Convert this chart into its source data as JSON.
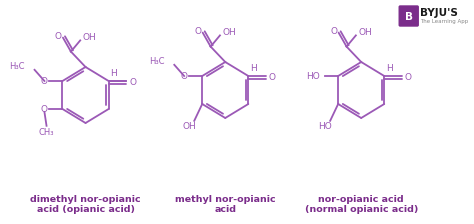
{
  "background_color": "#ffffff",
  "molecule_color": "#9b59b6",
  "label_color": "#7b2d8b",
  "fig_width": 4.74,
  "fig_height": 2.24,
  "dpi": 100,
  "labels": [
    "dimethyl nor-opianic\nacid (opianic acid)",
    "methyl nor-opianic\nacid",
    "nor-opianic acid\n(normal opianic acid)"
  ]
}
